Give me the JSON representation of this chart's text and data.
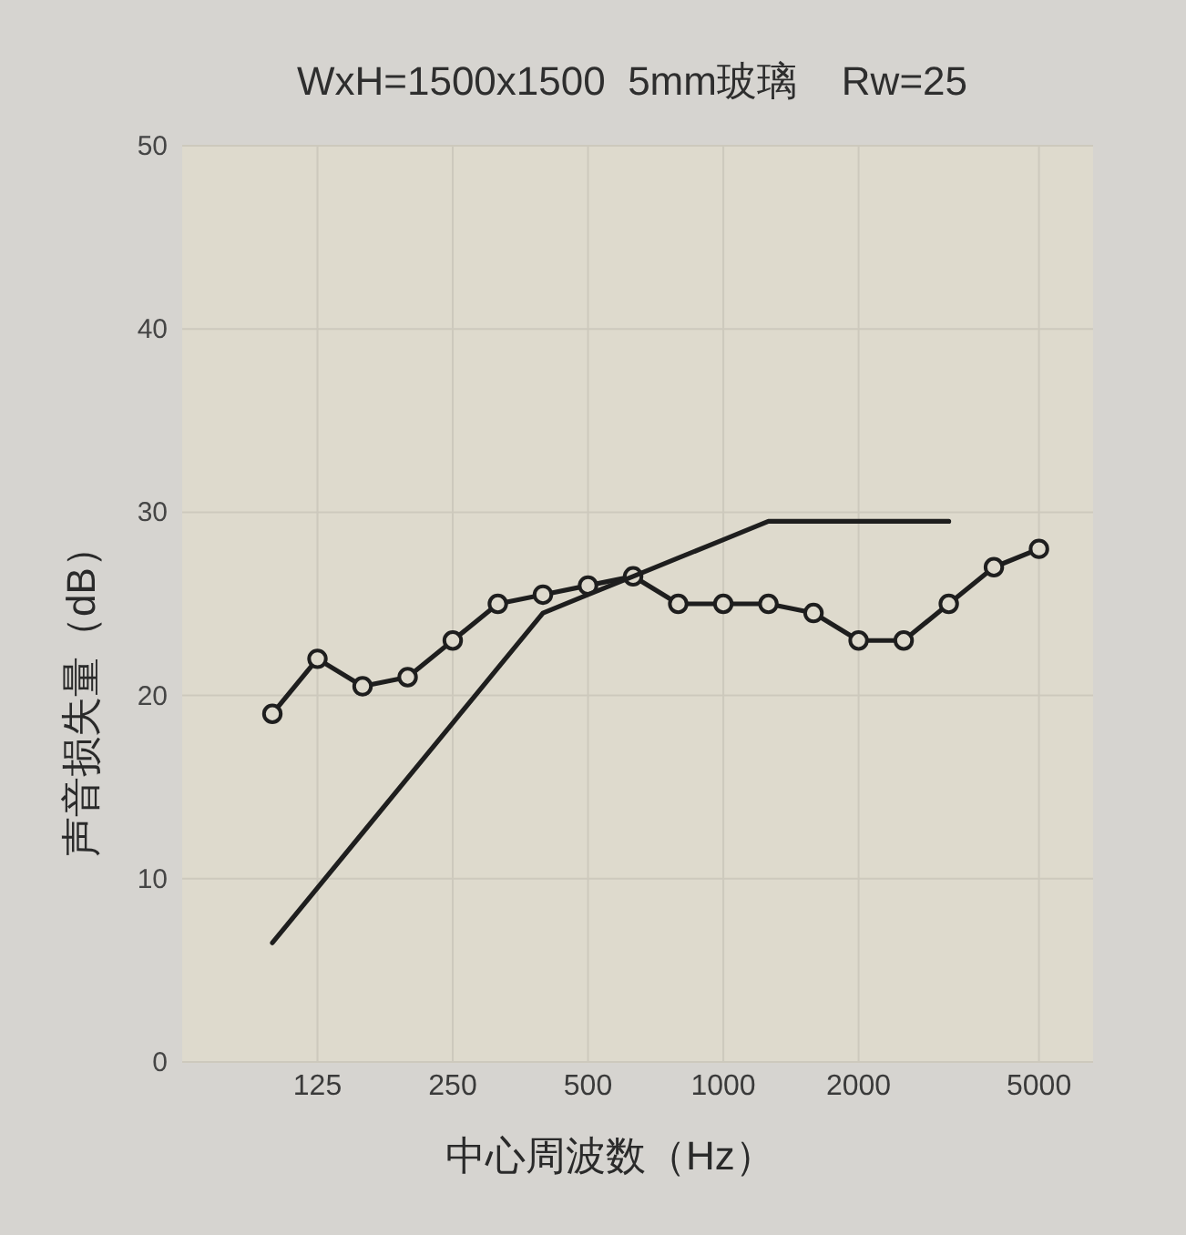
{
  "chart_data": {
    "type": "line",
    "title": "WxH=1500x1500  5mm玻璃    Rw=25",
    "xlabel": "中心周波数（Hz）",
    "ylabel": "声音损失量（dB）",
    "categories": [
      null,
      "125",
      null,
      null,
      "250",
      null,
      null,
      "500",
      null,
      null,
      "1000",
      null,
      null,
      "2000",
      null,
      null,
      null,
      "5000"
    ],
    "series": [
      {
        "color": "#1e1e1e",
        "marker": "circle",
        "values": [
          19,
          22,
          20.5,
          21,
          23,
          25,
          25.5,
          26,
          26.5,
          25,
          25,
          25,
          24.5,
          23,
          23,
          25,
          27,
          28
        ]
      },
      {
        "color": "#1e1e1e",
        "marker": "none",
        "values": [
          6.5,
          9.5,
          12.5,
          15.5,
          18.5,
          21.5,
          24.5,
          25.5,
          26.5,
          27.5,
          28.5,
          29.5,
          29.5,
          29.5,
          29.5,
          29.5,
          null,
          null
        ]
      }
    ],
    "ylim": [
      0,
      50
    ],
    "yticks": [
      0,
      10,
      20,
      30,
      40,
      50
    ],
    "grid": true
  }
}
